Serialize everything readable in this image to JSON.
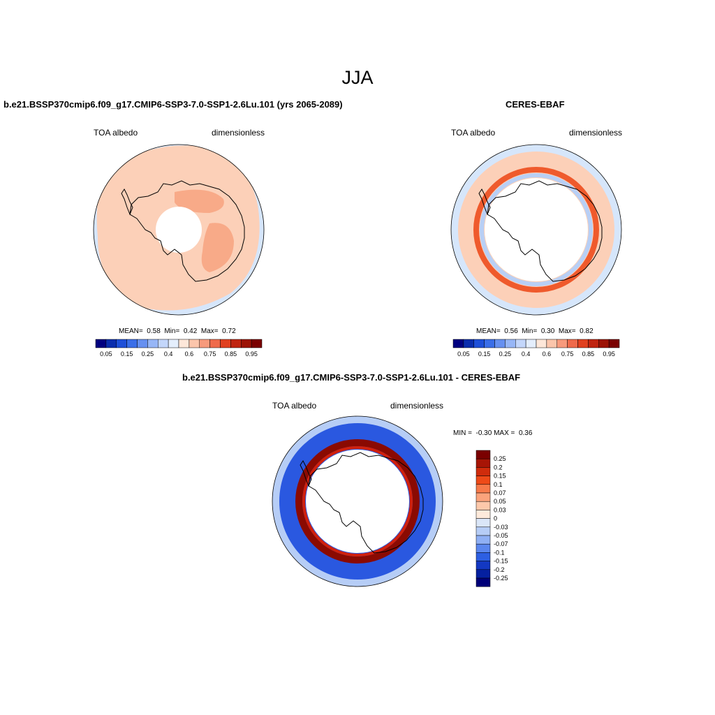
{
  "main_title": "JJA",
  "panels": [
    {
      "title": "b.e21.BSSP370cmip6.f09_g17.CMIP6-SSP3-7.0-SSP1-2.6Lu.101 (yrs 2065-2089)",
      "left_label": "TOA albedo",
      "right_label": "dimensionless",
      "stats": {
        "mean_label": "MEAN=",
        "mean": "0.58",
        "min_label": "Min=",
        "min": "0.42",
        "max_label": "Max=",
        "max": "0.72"
      }
    },
    {
      "title": "CERES-EBAF",
      "left_label": "TOA albedo",
      "right_label": "dimensionless",
      "stats": {
        "mean_label": "MEAN=",
        "mean": "0.56",
        "min_label": "Min=",
        "min": "0.30",
        "max_label": "Max=",
        "max": "0.82"
      }
    },
    {
      "title": "b.e21.BSSP370cmip6.f09_g17.CMIP6-SSP3-7.0-SSP1-2.6Lu.101 - CERES-EBAF",
      "left_label": "TOA albedo",
      "right_label": "dimensionless",
      "minmax": {
        "min_label": "MIN =",
        "min": "-0.30",
        "max_label": "MAX =",
        "max": "0.36"
      }
    }
  ],
  "colorbar_abs": {
    "ticks": [
      "0.05",
      "0.15",
      "0.25",
      "0.4",
      "0.6",
      "0.75",
      "0.85",
      "0.95"
    ],
    "colors": [
      "#000080",
      "#0a2dad",
      "#1e4fd8",
      "#3a6ee8",
      "#6690f0",
      "#97b6f6",
      "#c3d6fa",
      "#e4eefc",
      "#fde7d9",
      "#fbc5ab",
      "#f79a7c",
      "#ef6a4b",
      "#e0401f",
      "#bf2410",
      "#9c1305",
      "#7a0000"
    ]
  },
  "colorbar_diff": {
    "ticks": [
      "0.25",
      "0.2",
      "0.15",
      "0.1",
      "0.07",
      "0.05",
      "0.03",
      "0",
      "-0.03",
      "-0.05",
      "-0.07",
      "-0.1",
      "-0.15",
      "-0.2",
      "-0.25"
    ],
    "colors": [
      "#7a0000",
      "#a71506",
      "#d02c0c",
      "#ee4a18",
      "#f77a4a",
      "#fba37c",
      "#fdc8aa",
      "#feeadb",
      "#dae6f8",
      "#b6cdf6",
      "#8fb0f4",
      "#5a86ee",
      "#2d5fe2",
      "#1338c2",
      "#0520a0",
      "#000078"
    ]
  },
  "map_colors": {
    "ocean_light_blue": "#d6e6fb",
    "peach": "#fcd0b8",
    "salmon": "#f8aa88",
    "ceres_band": "#ef5a2c",
    "ceres_inner_blue": "#b8cff5",
    "diff_blue": "#2a58e0",
    "diff_light_blue": "#b6cdf6",
    "diff_red": "#d0200c",
    "diff_dark_red": "#8a0a02"
  }
}
